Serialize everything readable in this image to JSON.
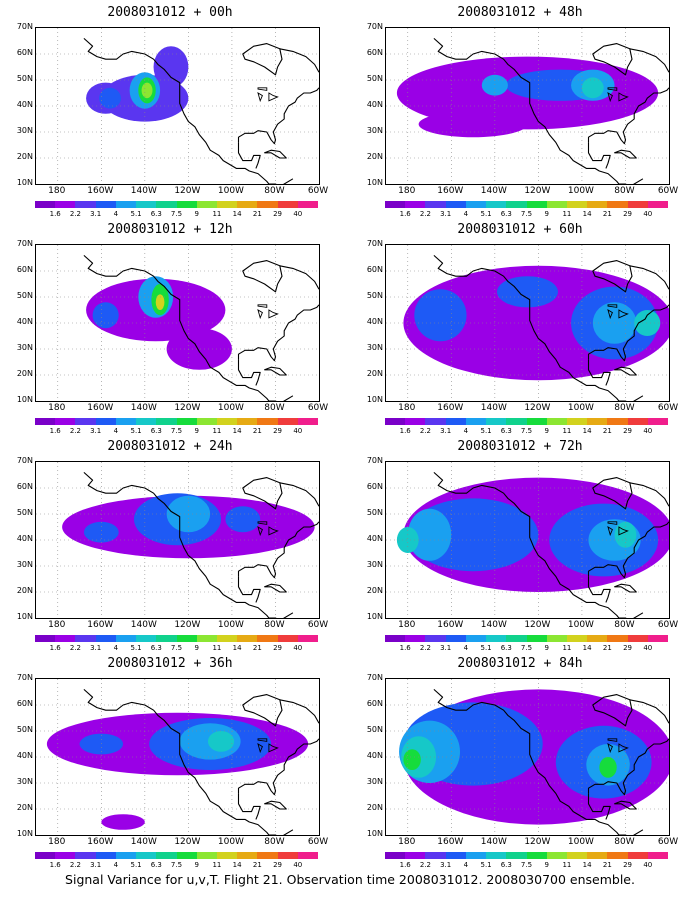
{
  "caption": "Signal Variance for u,v,T. Flight 21. Observation time 2008031012. 2008030700 ensemble.",
  "lat_labels": [
    "70N",
    "60N",
    "50N",
    "40N",
    "30N",
    "20N",
    "10N"
  ],
  "lon_labels": [
    "180",
    "160W",
    "140W",
    "120W",
    "100W",
    "80W",
    "60W"
  ],
  "colorbar": {
    "labels": [
      "1.6",
      "2.2",
      "3.1",
      "4",
      "5.1",
      "6.3",
      "7.5",
      "9",
      "11",
      "14",
      "21",
      "29",
      "40"
    ],
    "colors": [
      "#7a00c8",
      "#9a00e6",
      "#5a36f0",
      "#1e5af5",
      "#1aa0f0",
      "#16c8c8",
      "#10d28c",
      "#16dc3c",
      "#8ce632",
      "#d2d21e",
      "#e6aa14",
      "#f07814",
      "#f03c3c",
      "#f01e8c"
    ]
  },
  "panels": [
    {
      "id": "p00",
      "title": "2008031012 + 00h",
      "blobs": [
        {
          "c": 2,
          "cx": -140,
          "cy": 43,
          "rx": 20,
          "ry": 9
        },
        {
          "c": 2,
          "cx": -158,
          "cy": 43,
          "rx": 9,
          "ry": 6
        },
        {
          "c": 2,
          "cx": -128,
          "cy": 55,
          "rx": 8,
          "ry": 8
        },
        {
          "c": 3,
          "cx": -156,
          "cy": 43,
          "rx": 5,
          "ry": 4
        },
        {
          "c": 4,
          "cx": -140,
          "cy": 46,
          "rx": 7,
          "ry": 7
        },
        {
          "c": 7,
          "cx": -139,
          "cy": 46,
          "rx": 4,
          "ry": 5
        },
        {
          "c": 8,
          "cx": -139,
          "cy": 46,
          "rx": 2.5,
          "ry": 3
        }
      ]
    },
    {
      "id": "p48",
      "title": "2008031012 + 48h",
      "blobs": [
        {
          "c": 1,
          "cx": -125,
          "cy": 45,
          "rx": 60,
          "ry": 14
        },
        {
          "c": 1,
          "cx": -150,
          "cy": 33,
          "rx": 25,
          "ry": 5
        },
        {
          "c": 3,
          "cx": -110,
          "cy": 48,
          "rx": 25,
          "ry": 6
        },
        {
          "c": 4,
          "cx": -95,
          "cy": 48,
          "rx": 10,
          "ry": 6
        },
        {
          "c": 5,
          "cx": -95,
          "cy": 47,
          "rx": 5,
          "ry": 4
        },
        {
          "c": 4,
          "cx": -140,
          "cy": 48,
          "rx": 6,
          "ry": 4
        }
      ]
    },
    {
      "id": "p12",
      "title": "2008031012 + 12h",
      "blobs": [
        {
          "c": 1,
          "cx": -135,
          "cy": 45,
          "rx": 32,
          "ry": 12
        },
        {
          "c": 1,
          "cx": -115,
          "cy": 30,
          "rx": 15,
          "ry": 8
        },
        {
          "c": 3,
          "cx": -158,
          "cy": 43,
          "rx": 6,
          "ry": 5
        },
        {
          "c": 4,
          "cx": -135,
          "cy": 50,
          "rx": 8,
          "ry": 8
        },
        {
          "c": 7,
          "cx": -133,
          "cy": 49,
          "rx": 4,
          "ry": 6
        },
        {
          "c": 9,
          "cx": -133,
          "cy": 48,
          "rx": 2,
          "ry": 3
        }
      ]
    },
    {
      "id": "p60",
      "title": "2008031012 + 60h",
      "blobs": [
        {
          "c": 1,
          "cx": -120,
          "cy": 40,
          "rx": 62,
          "ry": 22
        },
        {
          "c": 3,
          "cx": -165,
          "cy": 43,
          "rx": 12,
          "ry": 10
        },
        {
          "c": 3,
          "cx": -85,
          "cy": 40,
          "rx": 20,
          "ry": 14
        },
        {
          "c": 4,
          "cx": -85,
          "cy": 40,
          "rx": 10,
          "ry": 8
        },
        {
          "c": 5,
          "cx": -70,
          "cy": 40,
          "rx": 6,
          "ry": 5
        },
        {
          "c": 3,
          "cx": -125,
          "cy": 52,
          "rx": 14,
          "ry": 6
        }
      ]
    },
    {
      "id": "p24",
      "title": "2008031012 + 24h",
      "blobs": [
        {
          "c": 1,
          "cx": -120,
          "cy": 45,
          "rx": 58,
          "ry": 12
        },
        {
          "c": 3,
          "cx": -125,
          "cy": 48,
          "rx": 20,
          "ry": 10
        },
        {
          "c": 4,
          "cx": -120,
          "cy": 50,
          "rx": 10,
          "ry": 7
        },
        {
          "c": 3,
          "cx": -160,
          "cy": 43,
          "rx": 8,
          "ry": 4
        },
        {
          "c": 3,
          "cx": -95,
          "cy": 48,
          "rx": 8,
          "ry": 5
        }
      ]
    },
    {
      "id": "p72",
      "title": "2008031012 + 72h",
      "blobs": [
        {
          "c": 1,
          "cx": -120,
          "cy": 42,
          "rx": 62,
          "ry": 22
        },
        {
          "c": 3,
          "cx": -150,
          "cy": 42,
          "rx": 30,
          "ry": 14
        },
        {
          "c": 3,
          "cx": -90,
          "cy": 40,
          "rx": 25,
          "ry": 14
        },
        {
          "c": 4,
          "cx": -170,
          "cy": 42,
          "rx": 10,
          "ry": 10
        },
        {
          "c": 5,
          "cx": -180,
          "cy": 40,
          "rx": 5,
          "ry": 5
        },
        {
          "c": 4,
          "cx": -85,
          "cy": 40,
          "rx": 12,
          "ry": 8
        },
        {
          "c": 5,
          "cx": -80,
          "cy": 42,
          "rx": 5,
          "ry": 5
        }
      ]
    },
    {
      "id": "p36",
      "title": "2008031012 + 36h",
      "blobs": [
        {
          "c": 1,
          "cx": -125,
          "cy": 45,
          "rx": 60,
          "ry": 12
        },
        {
          "c": 1,
          "cx": -150,
          "cy": 15,
          "rx": 10,
          "ry": 3
        },
        {
          "c": 3,
          "cx": -110,
          "cy": 45,
          "rx": 28,
          "ry": 10
        },
        {
          "c": 4,
          "cx": -110,
          "cy": 46,
          "rx": 14,
          "ry": 7
        },
        {
          "c": 5,
          "cx": -105,
          "cy": 46,
          "rx": 6,
          "ry": 4
        },
        {
          "c": 3,
          "cx": -160,
          "cy": 45,
          "rx": 10,
          "ry": 4
        }
      ]
    },
    {
      "id": "p84",
      "title": "2008031012 + 84h",
      "blobs": [
        {
          "c": 1,
          "cx": -120,
          "cy": 40,
          "rx": 62,
          "ry": 26
        },
        {
          "c": 3,
          "cx": -150,
          "cy": 45,
          "rx": 32,
          "ry": 16
        },
        {
          "c": 4,
          "cx": -170,
          "cy": 42,
          "rx": 14,
          "ry": 12
        },
        {
          "c": 5,
          "cx": -175,
          "cy": 40,
          "rx": 8,
          "ry": 8
        },
        {
          "c": 7,
          "cx": -178,
          "cy": 39,
          "rx": 4,
          "ry": 4
        },
        {
          "c": 3,
          "cx": -90,
          "cy": 38,
          "rx": 22,
          "ry": 14
        },
        {
          "c": 4,
          "cx": -88,
          "cy": 37,
          "rx": 10,
          "ry": 8
        },
        {
          "c": 7,
          "cx": -88,
          "cy": 36,
          "rx": 4,
          "ry": 4
        }
      ]
    }
  ]
}
